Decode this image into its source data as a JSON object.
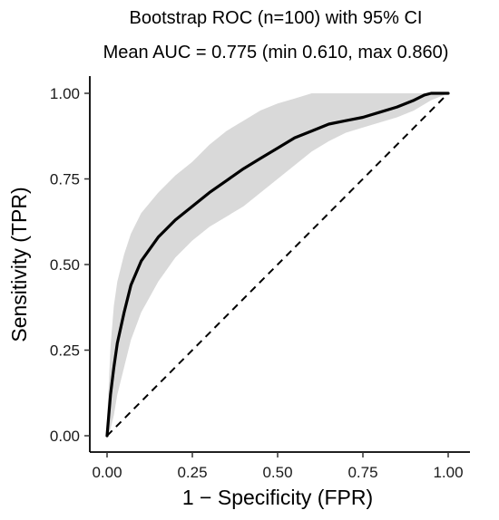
{
  "chart_data": {
    "type": "line",
    "title": "Bootstrap ROC (n=100) with 95% CI",
    "subtitle": "Mean AUC = 0.775 (min 0.610, max 0.860)",
    "xlabel": "1 − Specificity (FPR)",
    "ylabel": "Sensitivity (TPR)",
    "xlim": [
      0,
      1
    ],
    "ylim": [
      0,
      1
    ],
    "x_ticks": [
      0.0,
      0.25,
      0.5,
      0.75,
      1.0
    ],
    "x_tick_labels": [
      "0.00",
      "0.25",
      "0.50",
      "0.75",
      "1.00"
    ],
    "y_ticks": [
      0.0,
      0.25,
      0.5,
      0.75,
      1.0
    ],
    "y_tick_labels": [
      "0.00",
      "0.25",
      "0.50",
      "0.75",
      "1.00"
    ],
    "grid": false,
    "series": [
      {
        "role": "mean",
        "color": "#000000",
        "x": [
          0.0,
          0.005,
          0.01,
          0.02,
          0.03,
          0.05,
          0.07,
          0.1,
          0.15,
          0.2,
          0.25,
          0.3,
          0.35,
          0.4,
          0.45,
          0.5,
          0.55,
          0.6,
          0.65,
          0.7,
          0.75,
          0.8,
          0.85,
          0.9,
          0.93,
          0.95,
          0.97,
          1.0
        ],
        "y": [
          0.0,
          0.06,
          0.12,
          0.2,
          0.27,
          0.36,
          0.44,
          0.51,
          0.58,
          0.63,
          0.67,
          0.71,
          0.745,
          0.78,
          0.81,
          0.84,
          0.87,
          0.89,
          0.91,
          0.92,
          0.93,
          0.945,
          0.96,
          0.98,
          0.995,
          1.0,
          1.0,
          1.0
        ]
      },
      {
        "role": "ci_upper",
        "color": "#d9d9d9",
        "x": [
          0.0,
          0.005,
          0.01,
          0.02,
          0.03,
          0.05,
          0.07,
          0.1,
          0.15,
          0.2,
          0.25,
          0.3,
          0.35,
          0.4,
          0.45,
          0.5,
          0.55,
          0.6,
          0.65,
          0.7,
          0.75,
          0.8,
          0.85,
          0.9,
          0.95,
          1.0
        ],
        "y": [
          0.05,
          0.15,
          0.26,
          0.38,
          0.45,
          0.53,
          0.59,
          0.65,
          0.71,
          0.76,
          0.8,
          0.85,
          0.89,
          0.92,
          0.95,
          0.97,
          0.985,
          1.0,
          1.0,
          1.0,
          1.0,
          1.0,
          1.0,
          1.0,
          1.0,
          1.0
        ]
      },
      {
        "role": "ci_lower",
        "color": "#d9d9d9",
        "x": [
          0.0,
          0.01,
          0.02,
          0.03,
          0.05,
          0.07,
          0.1,
          0.15,
          0.2,
          0.25,
          0.3,
          0.35,
          0.4,
          0.45,
          0.5,
          0.55,
          0.6,
          0.65,
          0.7,
          0.75,
          0.8,
          0.85,
          0.9,
          0.95,
          1.0
        ],
        "y": [
          0.0,
          0.02,
          0.06,
          0.12,
          0.2,
          0.28,
          0.36,
          0.45,
          0.52,
          0.57,
          0.61,
          0.64,
          0.67,
          0.71,
          0.75,
          0.79,
          0.83,
          0.86,
          0.885,
          0.9,
          0.915,
          0.93,
          0.95,
          0.98,
          1.0
        ]
      },
      {
        "role": "reference",
        "style": "dashed",
        "color": "#000000",
        "x": [
          0.0,
          1.0
        ],
        "y": [
          0.0,
          1.0
        ]
      }
    ]
  }
}
